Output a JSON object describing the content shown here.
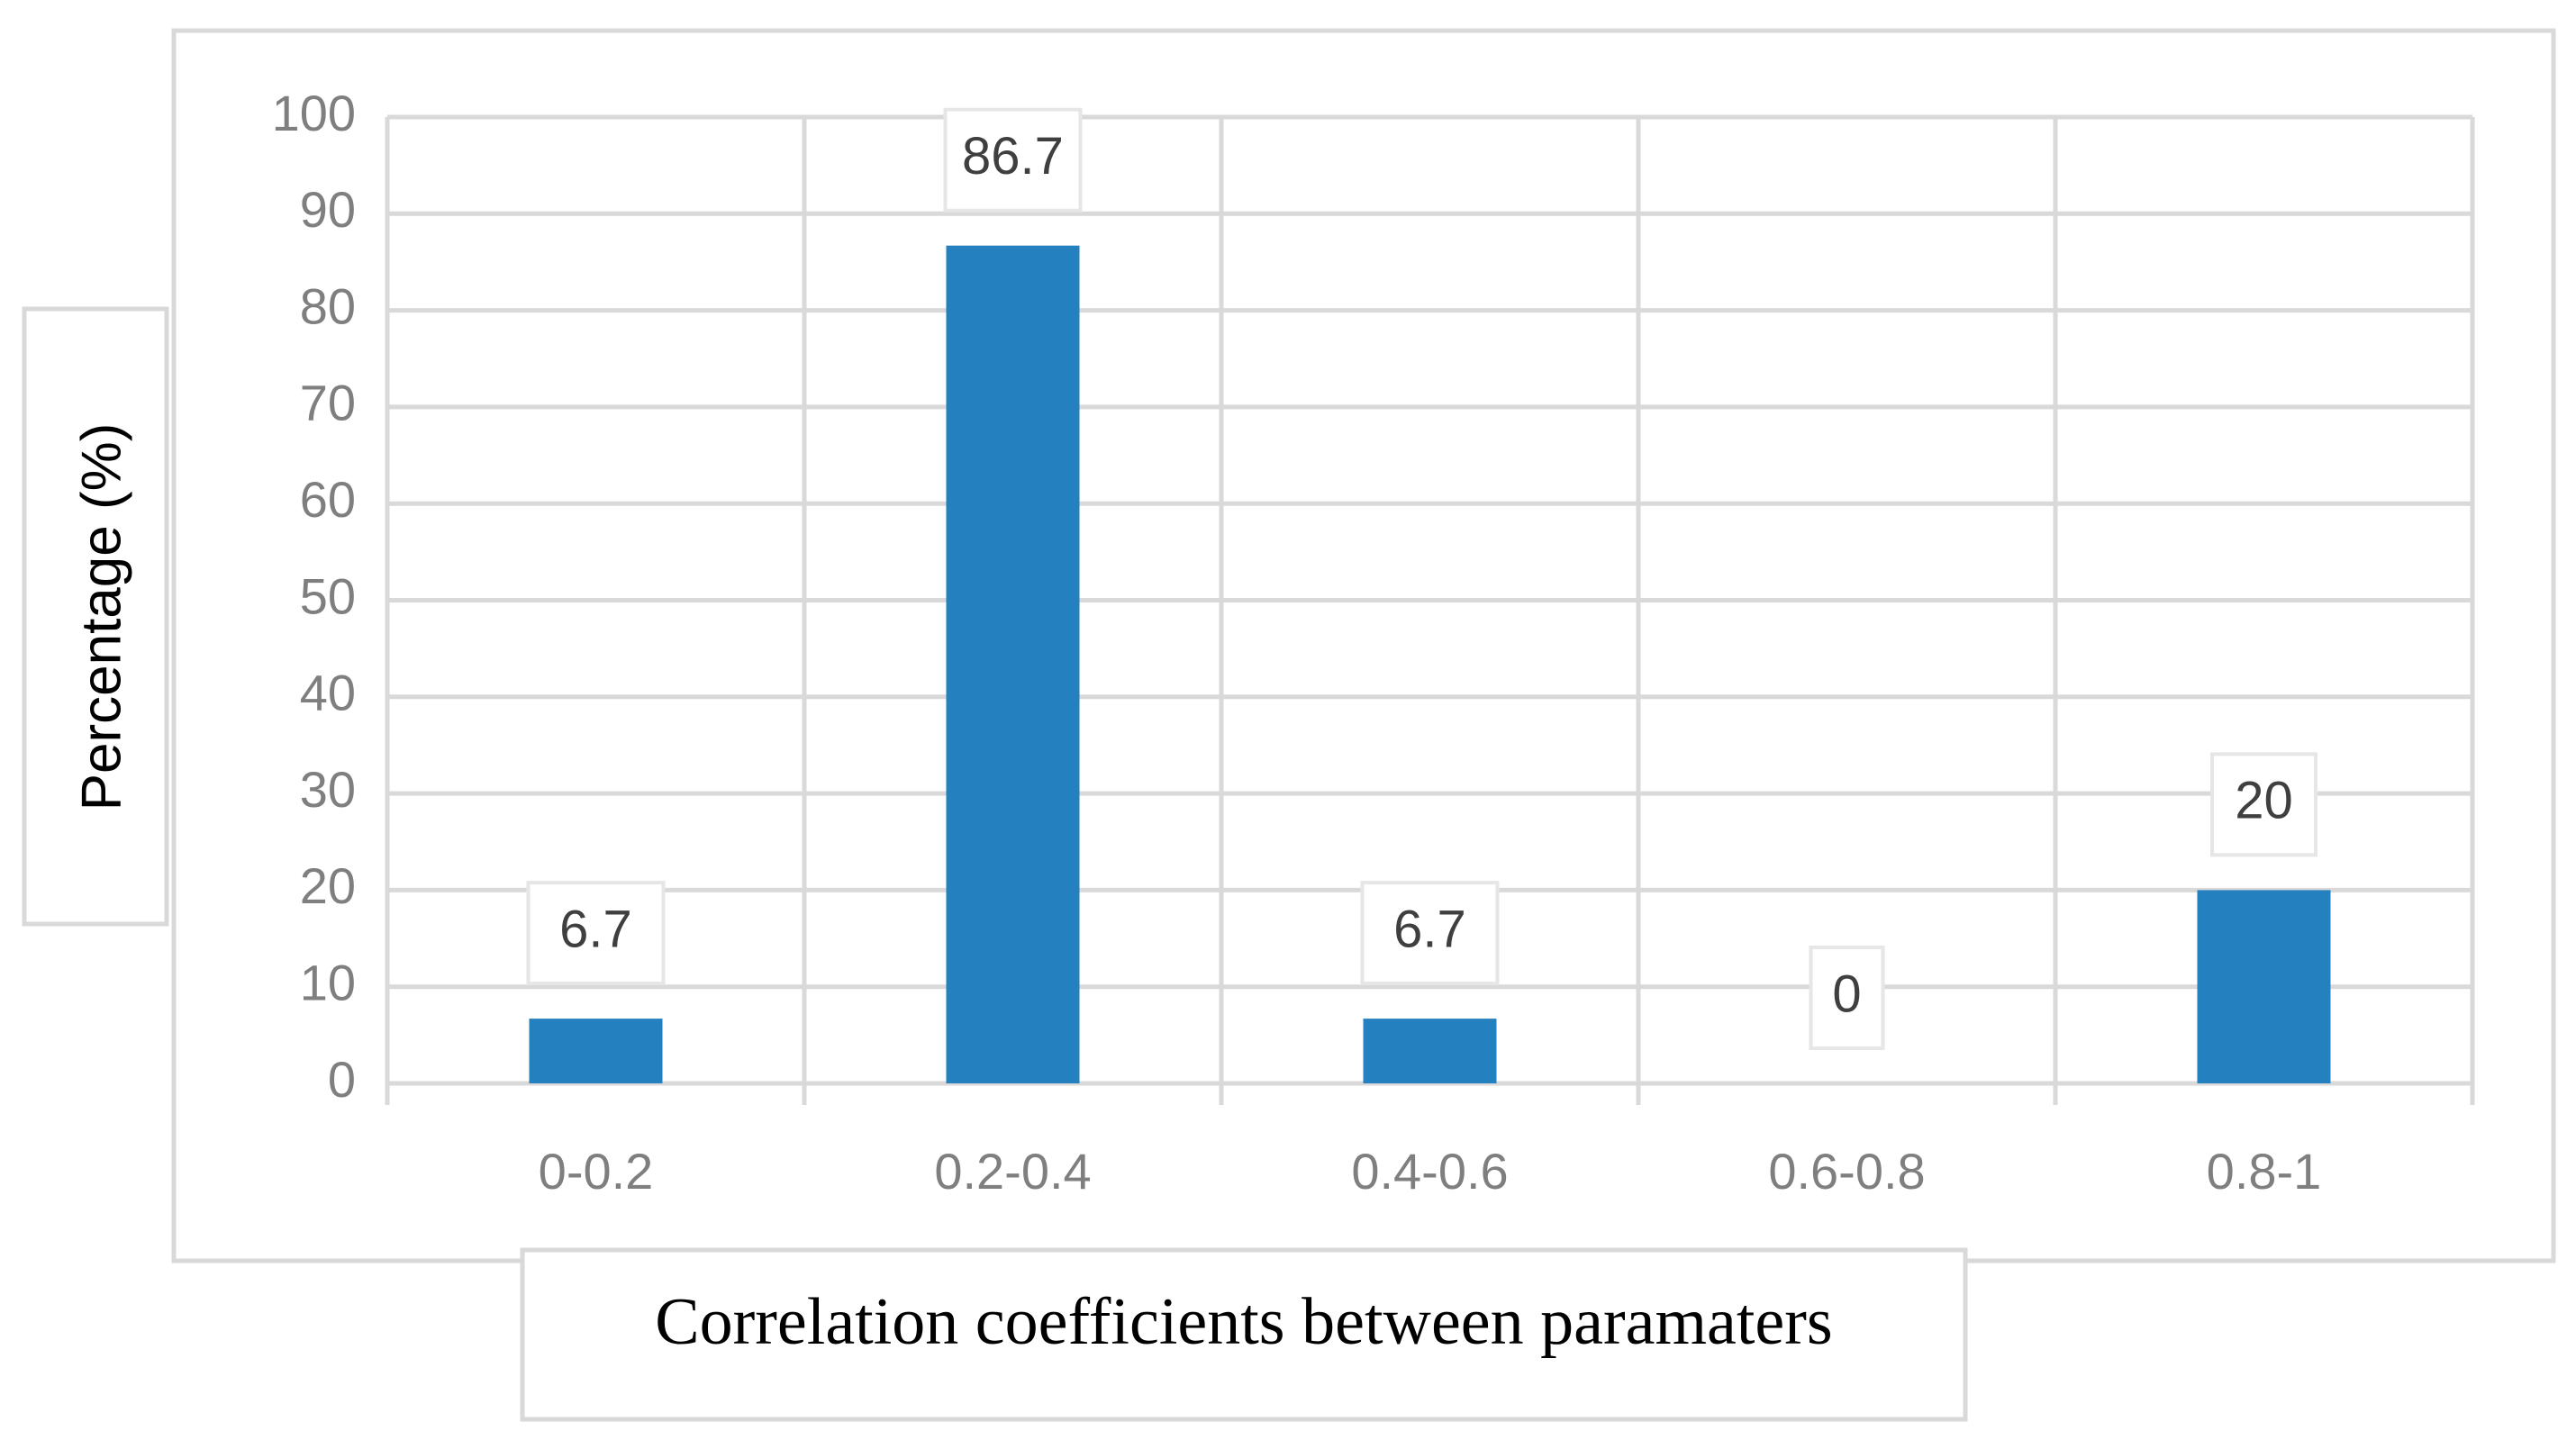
{
  "chart_data": {
    "type": "bar",
    "categories": [
      "0-0.2",
      "0.2-0.4",
      "0.4-0.6",
      "0.6-0.8",
      "0.8-1"
    ],
    "values": [
      6.7,
      86.7,
      6.7,
      0,
      20
    ],
    "data_labels": [
      "6.7",
      "86.7",
      "6.7",
      "0",
      "20"
    ],
    "title": "",
    "xlabel": "Correlation coefficients between paramaters",
    "ylabel": "Percentage (%)",
    "ylim": [
      0,
      100
    ],
    "yticks": [
      0,
      10,
      20,
      30,
      40,
      50,
      60,
      70,
      80,
      90,
      100
    ],
    "ytick_labels": [
      "0",
      "10",
      "20",
      "30",
      "40",
      "50",
      "60",
      "70",
      "80",
      "90",
      "100"
    ],
    "grid": true,
    "bar_color": "#2580c0",
    "grid_color": "#d9d9d9"
  }
}
